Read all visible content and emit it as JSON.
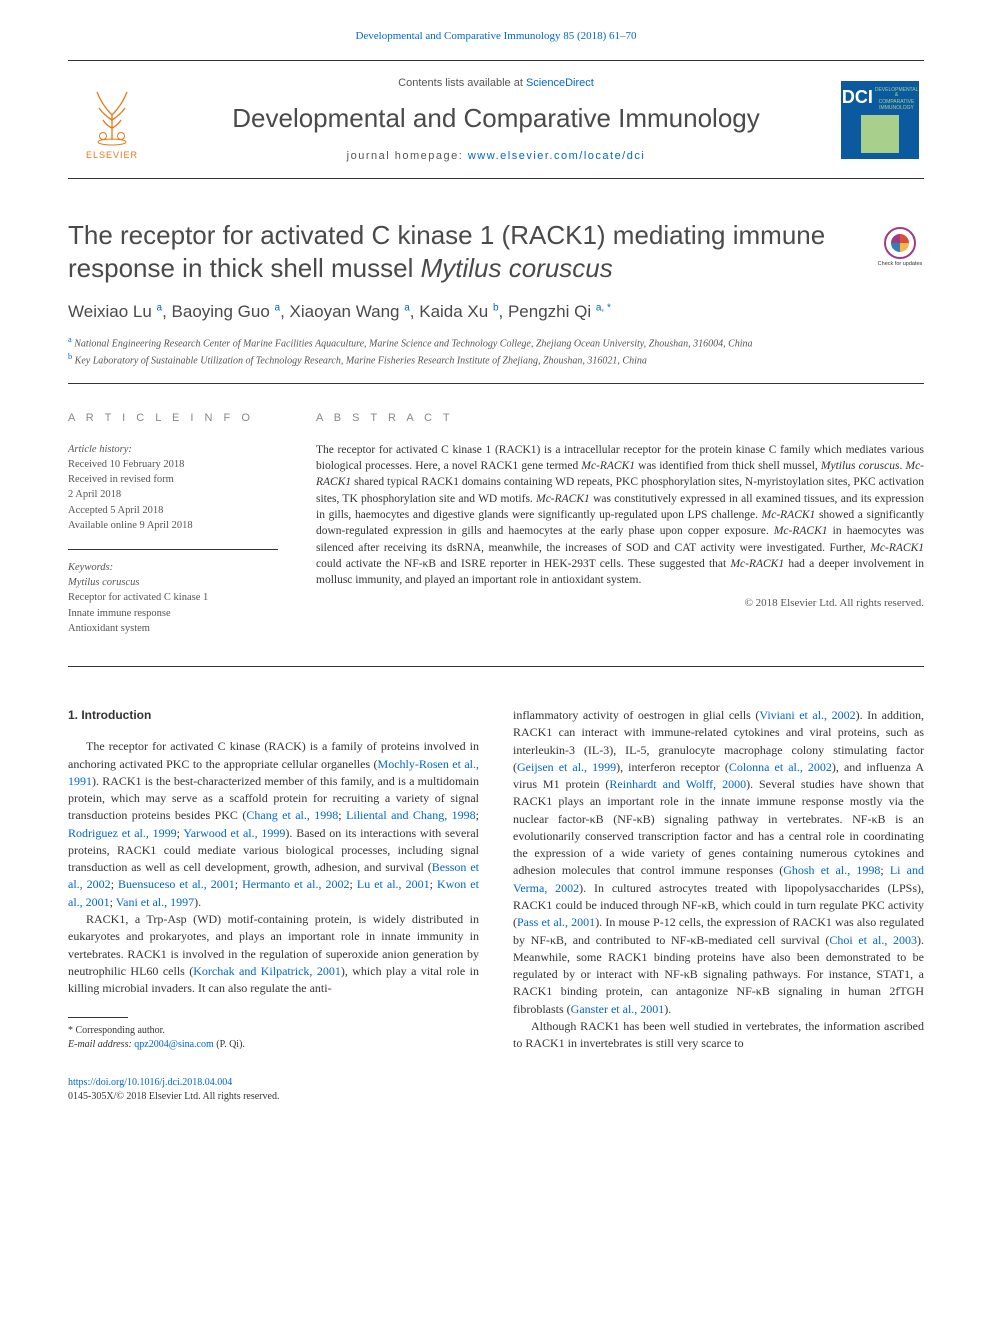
{
  "colors": {
    "link": "#0066cc",
    "text": "#333333",
    "muted": "#555555",
    "elsevier_orange": "#e67817",
    "dci_blue": "#0b5aa0",
    "dci_green": "#a8d08c",
    "heading_gray": "#4a4a4a",
    "section_head": "#888888"
  },
  "typography": {
    "body_family": "Georgia, 'Times New Roman', serif",
    "sans_family": "Arial, sans-serif",
    "title_fontsize": 26,
    "journal_fontsize": 26,
    "authors_fontsize": 17,
    "body_fontsize": 12,
    "abstract_fontsize": 11.5,
    "small_fontsize": 10
  },
  "top_link": {
    "prefix": "Developmental and Comparative Immunology 85 (2018) 61",
    "suffix": "70"
  },
  "header": {
    "contents_prefix": "Contents lists available at ",
    "contents_link": "ScienceDirect",
    "journal_name": "Developmental and Comparative Immunology",
    "homepage_prefix": "journal homepage: ",
    "homepage_link": "www.elsevier.com/locate/dci",
    "elsevier_label": "ELSEVIER",
    "dci_label": "DCI",
    "dci_sub1": "DEVELOPMENTAL &",
    "dci_sub2": "COMPARATIVE",
    "dci_sub3": "IMMUNOLOGY"
  },
  "article": {
    "title_line1": "The receptor for activated C kinase 1 (RACK1) mediating immune",
    "title_line2_a": "response in thick shell mussel ",
    "title_line2_b": "Mytilus coruscus",
    "check_updates_label": "Check for updates",
    "authors_html": "Weixiao Lu <sup>a</sup>, Baoying Guo <sup>a</sup>, Xiaoyan Wang <sup>a</sup>, Kaida Xu <sup>b</sup>, Pengzhi Qi <sup>a, *</sup>",
    "affiliation_a": "National Engineering Research Center of Marine Facilities Aquaculture, Marine Science and Technology College, Zhejiang Ocean University, Zhoushan, 316004, China",
    "affiliation_b": "Key Laboratory of Sustainable Utilization of Technology Research, Marine Fisheries Research Institute of Zhejiang, Zhoushan, 316021, China"
  },
  "info": {
    "heading": "A R T I C L E   I N F O",
    "history_label": "Article history:",
    "history": [
      "Received 10 February 2018",
      "Received in revised form",
      "2 April 2018",
      "Accepted 5 April 2018",
      "Available online 9 April 2018"
    ],
    "keywords_label": "Keywords:",
    "keywords": [
      "Mytilus coruscus",
      "Receptor for activated C kinase 1",
      "Innate immune response",
      "Antioxidant system"
    ]
  },
  "abstract": {
    "heading": "A B S T R A C T",
    "text": "The receptor for activated C kinase 1 (RACK1) is a intracellular receptor for the protein kinase C family which mediates various biological processes. Here, a novel RACK1 gene termed Mc-RACK1 was identified from thick shell mussel, Mytilus coruscus. Mc-RACK1 shared typical RACK1 domains containing WD repeats, PKC phosphorylation sites, N-myristoylation sites, PKC activation sites, TK phosphorylation site and WD motifs. Mc-RACK1 was constitutively expressed in all examined tissues, and its expression in gills, haemocytes and digestive glands were significantly up-regulated upon LPS challenge. Mc-RACK1 showed a significantly down-regulated expression in gills and haemocytes at the early phase upon copper exposure. Mc-RACK1 in haemocytes was silenced after receiving its dsRNA, meanwhile, the increases of SOD and CAT activity were investigated. Further, Mc-RACK1 could activate the NF-κB and ISRE reporter in HEK-293T cells. These suggested that Mc-RACK1 had a deeper involvement in mollusc immunity, and played an important role in antioxidant system.",
    "copyright": "© 2018 Elsevier Ltd. All rights reserved."
  },
  "body": {
    "introduction_heading": "1.  Introduction",
    "col1_p1": "The receptor for activated C kinase (RACK) is a family of proteins involved in anchoring activated PKC to the appropriate cellular organelles (Mochly-Rosen et al., 1991). RACK1 is the best-characterized member of this family, and is a multidomain protein, which may serve as a scaffold protein for recruiting a variety of signal transduction proteins besides PKC (Chang et al., 1998; Liliental and Chang, 1998; Rodriguez et al., 1999; Yarwood et al., 1999). Based on its interactions with several proteins, RACK1 could mediate various biological processes, including signal transduction as well as cell development, growth, adhesion, and survival (Besson et al., 2002; Buensuceso et al., 2001; Hermanto et al., 2002; Lu et al., 2001; Kwon et al., 2001; Vani et al., 1997).",
    "col1_p2": "RACK1, a Trp-Asp (WD) motif-containing protein, is widely distributed in eukaryotes and prokaryotes, and plays an important role in innate immunity in vertebrates. RACK1 is involved in the regulation of superoxide anion generation by neutrophilic HL60 cells (Korchak and Kilpatrick, 2001), which play a vital role in killing microbial invaders. It can also regulate the anti-",
    "col2_p1": "inflammatory activity of oestrogen in glial cells (Viviani et al., 2002). In addition, RACK1 can interact with immune-related cytokines and viral proteins, such as interleukin-3 (IL-3), IL-5, granulocyte macrophage colony stimulating factor (Geijsen et al., 1999), interferon receptor (Colonna et al., 2002), and influenza A virus M1 protein (Reinhardt and Wolff, 2000). Several studies have shown that RACK1 plays an important role in the innate immune response mostly via the nuclear factor-κB (NF-κB) signaling pathway in vertebrates. NF-κB is an evolutionarily conserved transcription factor and has a central role in coordinating the expression of a wide variety of genes containing numerous cytokines and adhesion molecules that control immune responses (Ghosh et al., 1998; Li and Verma, 2002). In cultured astrocytes treated with lipopolysaccharides (LPSs), RACK1 could be induced through NF-κB, which could in turn regulate PKC activity (Pass et al., 2001). In mouse P-12 cells, the expression of RACK1 was also regulated by NF-κB, and contributed to NF-κB-mediated cell survival (Choi et al., 2003). Meanwhile, some RACK1 binding proteins have also been demonstrated to be regulated by or interact with NF-κB signaling pathways. For instance, STAT1, a RACK1 binding protein, can antagonize NF-κB signaling in human 2fTGH fibroblasts (Ganster et al., 2001).",
    "col2_p2": "Although RACK1 has been well studied in vertebrates, the information ascribed to RACK1 in invertebrates is still very scarce to"
  },
  "footnotes": {
    "corresponding": "* Corresponding author.",
    "email_label": "E-mail address: ",
    "email": "qpz2004@sina.com",
    "email_suffix": " (P. Qi)."
  },
  "footer": {
    "doi": "https://doi.org/10.1016/j.dci.2018.04.004",
    "issn_line": "0145-305X/© 2018 Elsevier Ltd. All rights reserved."
  }
}
